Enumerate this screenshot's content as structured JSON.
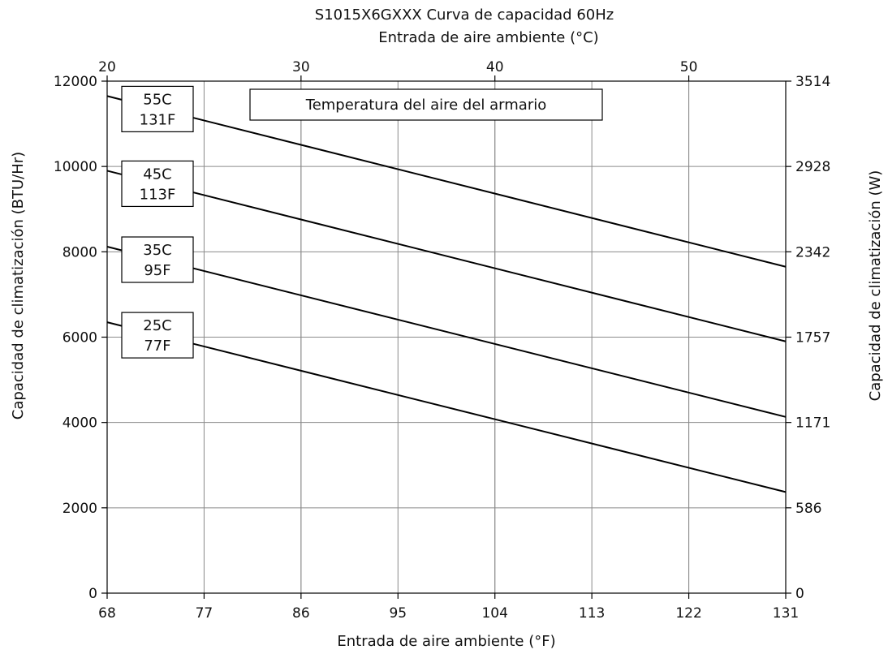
{
  "chart_data": {
    "type": "line",
    "title": "S1015X6GXXX Curva de capacidad 60Hz",
    "x_label_bottom": "Entrada de aire ambiente (°F)",
    "x_label_top": "Entrada de aire ambiente (°C)",
    "y_label_left": "Capacidad de climatización (BTU/Hr)",
    "y_label_right": "Capacidad de climatización (W)",
    "legend_title": "Temperatura del aire del armario",
    "xlim": [
      68,
      131
    ],
    "ylim": [
      0,
      12000
    ],
    "x_ticks": [
      "68",
      "77",
      "86",
      "95",
      "104",
      "113",
      "122",
      "131"
    ],
    "x_ticks_top": [
      "20",
      "30",
      "40",
      "50"
    ],
    "x_ticks_top_values_c": [
      20,
      30,
      40,
      50
    ],
    "y_ticks_left": [
      "0",
      "2000",
      "4000",
      "6000",
      "8000",
      "10000",
      "12000"
    ],
    "y_ticks_right": [
      "0",
      "586",
      "1171",
      "1757",
      "2342",
      "2928",
      "3514"
    ],
    "grid": true,
    "series": [
      {
        "name": "55C 131F",
        "label_c": "55C",
        "label_f": "131F",
        "x": [
          68,
          131
        ],
        "y": [
          11650,
          7650
        ]
      },
      {
        "name": "45C 113F",
        "label_c": "45C",
        "label_f": "113F",
        "x": [
          68,
          131
        ],
        "y": [
          9900,
          5900
        ]
      },
      {
        "name": "35C 95F",
        "label_c": "35C",
        "label_f": "95F",
        "x": [
          68,
          131
        ],
        "y": [
          8120,
          4130
        ]
      },
      {
        "name": "25C 77F",
        "label_c": "25C",
        "label_f": "77F",
        "x": [
          68,
          131
        ],
        "y": [
          6350,
          2370
        ]
      }
    ]
  }
}
